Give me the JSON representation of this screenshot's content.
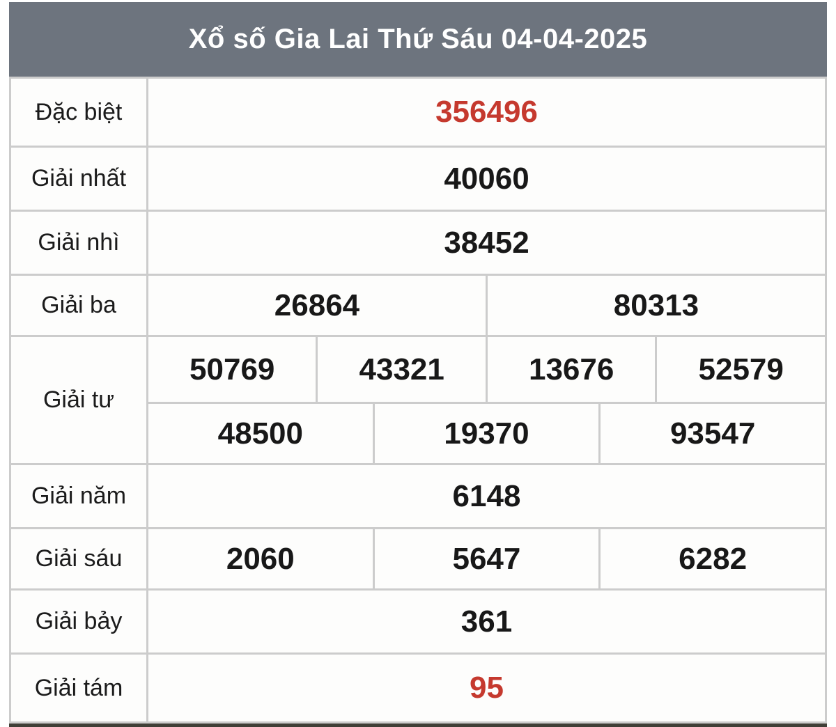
{
  "page": {
    "title": "Xổ số Gia Lai Thứ Sáu 04-04-2025"
  },
  "colors": {
    "header_bg": "#6d747e",
    "header_text": "#ffffff",
    "highlight_red": "#c5392e",
    "number_black": "#181818",
    "cell_border": "#cccccc",
    "cell_bg": "#fdfdfc"
  },
  "table": {
    "rows": [
      {
        "label": "Đặc biệt",
        "values": [
          "356496"
        ],
        "highlight": true
      },
      {
        "label": "Giải nhất",
        "values": [
          "40060"
        ]
      },
      {
        "label": "Giải nhì",
        "values": [
          "38452"
        ]
      },
      {
        "label": "Giải ba",
        "values": [
          "26864",
          "80313"
        ]
      },
      {
        "label": "Giải tư",
        "values_row1": [
          "50769",
          "43321",
          "13676",
          "52579"
        ],
        "values_row2": [
          "48500",
          "19370",
          "93547"
        ]
      },
      {
        "label": "Giải năm",
        "values": [
          "6148"
        ]
      },
      {
        "label": "Giải sáu",
        "values": [
          "2060",
          "5647",
          "6282"
        ]
      },
      {
        "label": "Giải bảy",
        "values": [
          "361"
        ]
      },
      {
        "label": "Giải tám",
        "values": [
          "95"
        ],
        "highlight": true
      }
    ]
  }
}
